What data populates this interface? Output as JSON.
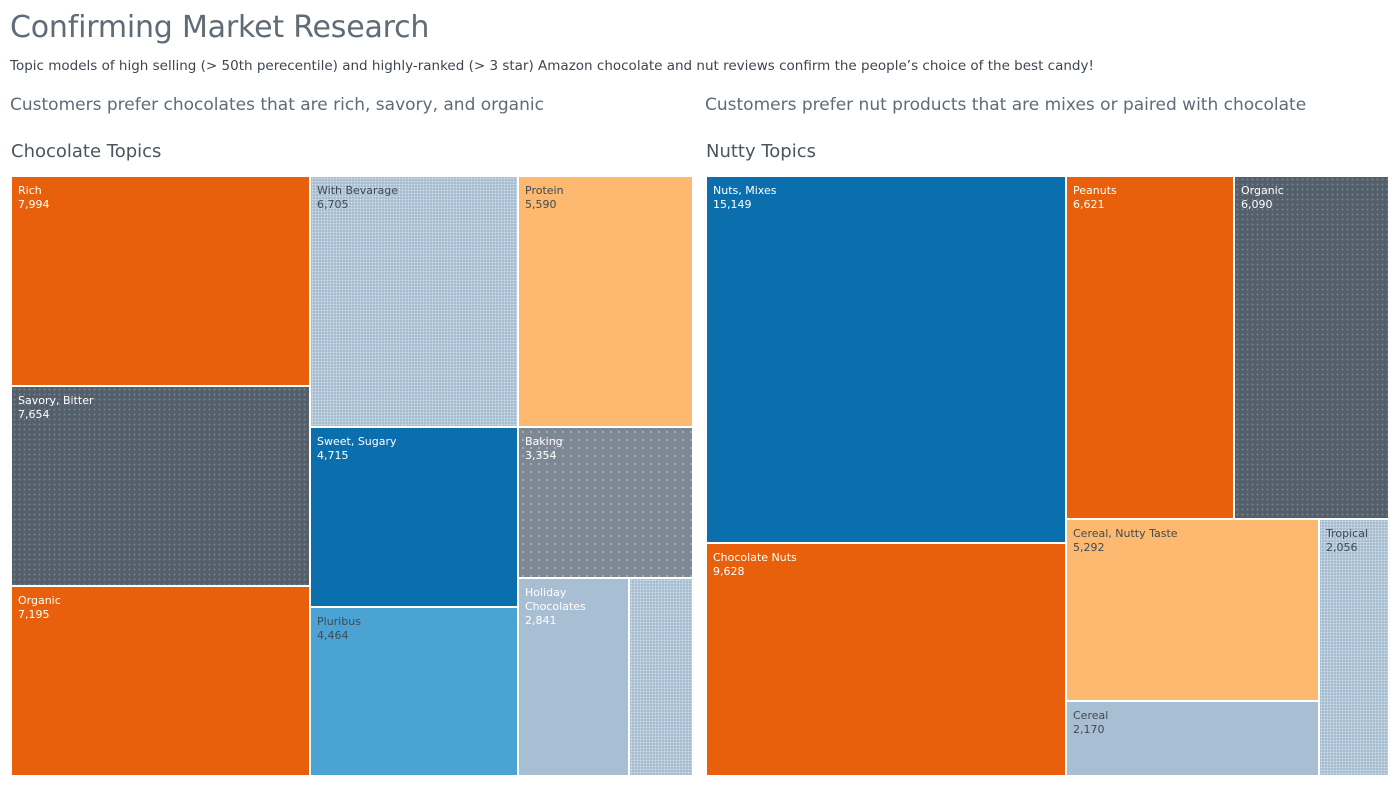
{
  "header": {
    "title": "Confirming Market Research",
    "subtitle": "Topic models of high selling (> 50th perecentile) and highly-ranked (> 3 star) Amazon chocolate and nut reviews confirm the people’s choice of the best candy!"
  },
  "left": {
    "heading": "Customers prefer chocolates that are rich, savory, and organic",
    "panel_title": "Chocolate Topics"
  },
  "right": {
    "heading": "Customers prefer nut products that are mixes or paired with chocolate",
    "panel_title": "Nutty Topics"
  },
  "colors": {
    "orange": "#e8600b",
    "slate": "#535f6b",
    "light_orange": "#fdb970",
    "blue": "#0b6fae",
    "mid_blue": "#4ba3d3",
    "gray_blue": "#7c8894",
    "pale_blue": "#a8bed2",
    "label_light": "#ffffff",
    "label_dark": "#3f4a55"
  },
  "chart_data": [
    {
      "type": "treemap",
      "title": "Chocolate Topics",
      "items": [
        {
          "name": "Rich",
          "value": 7994,
          "value_label": "7,994",
          "color": "#e8600b"
        },
        {
          "name": "Savory, Bitter",
          "value": 7654,
          "value_label": "7,654",
          "color": "#535f6b"
        },
        {
          "name": "Organic",
          "value": 7195,
          "value_label": "7,195",
          "color": "#e8600b"
        },
        {
          "name": "With Bevarage",
          "value": 6705,
          "value_label": "6,705",
          "color": "#a8bed2"
        },
        {
          "name": "Sweet, Sugary",
          "value": 4715,
          "value_label": "4,715",
          "color": "#0b6fae"
        },
        {
          "name": "Pluribus",
          "value": 4464,
          "value_label": "4,464",
          "color": "#4ba3d3"
        },
        {
          "name": "Protein",
          "value": 5590,
          "value_label": "5,590",
          "color": "#fdb970"
        },
        {
          "name": "Baking",
          "value": 3354,
          "value_label": "3,354",
          "color": "#7c8894"
        },
        {
          "name": "Holiday Chocolates",
          "value": 2841,
          "value_label": "2,841",
          "color": "#a8bed2"
        },
        {
          "name": "",
          "value": 1170,
          "value_label": "",
          "color": "#a8bed2"
        }
      ]
    },
    {
      "type": "treemap",
      "title": "Nutty Topics",
      "items": [
        {
          "name": "Nuts, Mixes",
          "value": 15149,
          "value_label": "15,149",
          "color": "#0b6fae"
        },
        {
          "name": "Chocolate Nuts",
          "value": 9628,
          "value_label": "9,628",
          "color": "#e8600b"
        },
        {
          "name": "Peanuts",
          "value": 6621,
          "value_label": "6,621",
          "color": "#e8600b"
        },
        {
          "name": "Organic",
          "value": 6090,
          "value_label": "6,090",
          "color": "#535f6b"
        },
        {
          "name": "Cereal, Nutty Taste",
          "value": 5292,
          "value_label": "5,292",
          "color": "#fdb970"
        },
        {
          "name": "Cereal",
          "value": 2170,
          "value_label": "2,170",
          "color": "#a8bed2"
        },
        {
          "name": "Tropical",
          "value": 2056,
          "value_label": "2,056",
          "color": "#a8bed2"
        }
      ]
    }
  ]
}
